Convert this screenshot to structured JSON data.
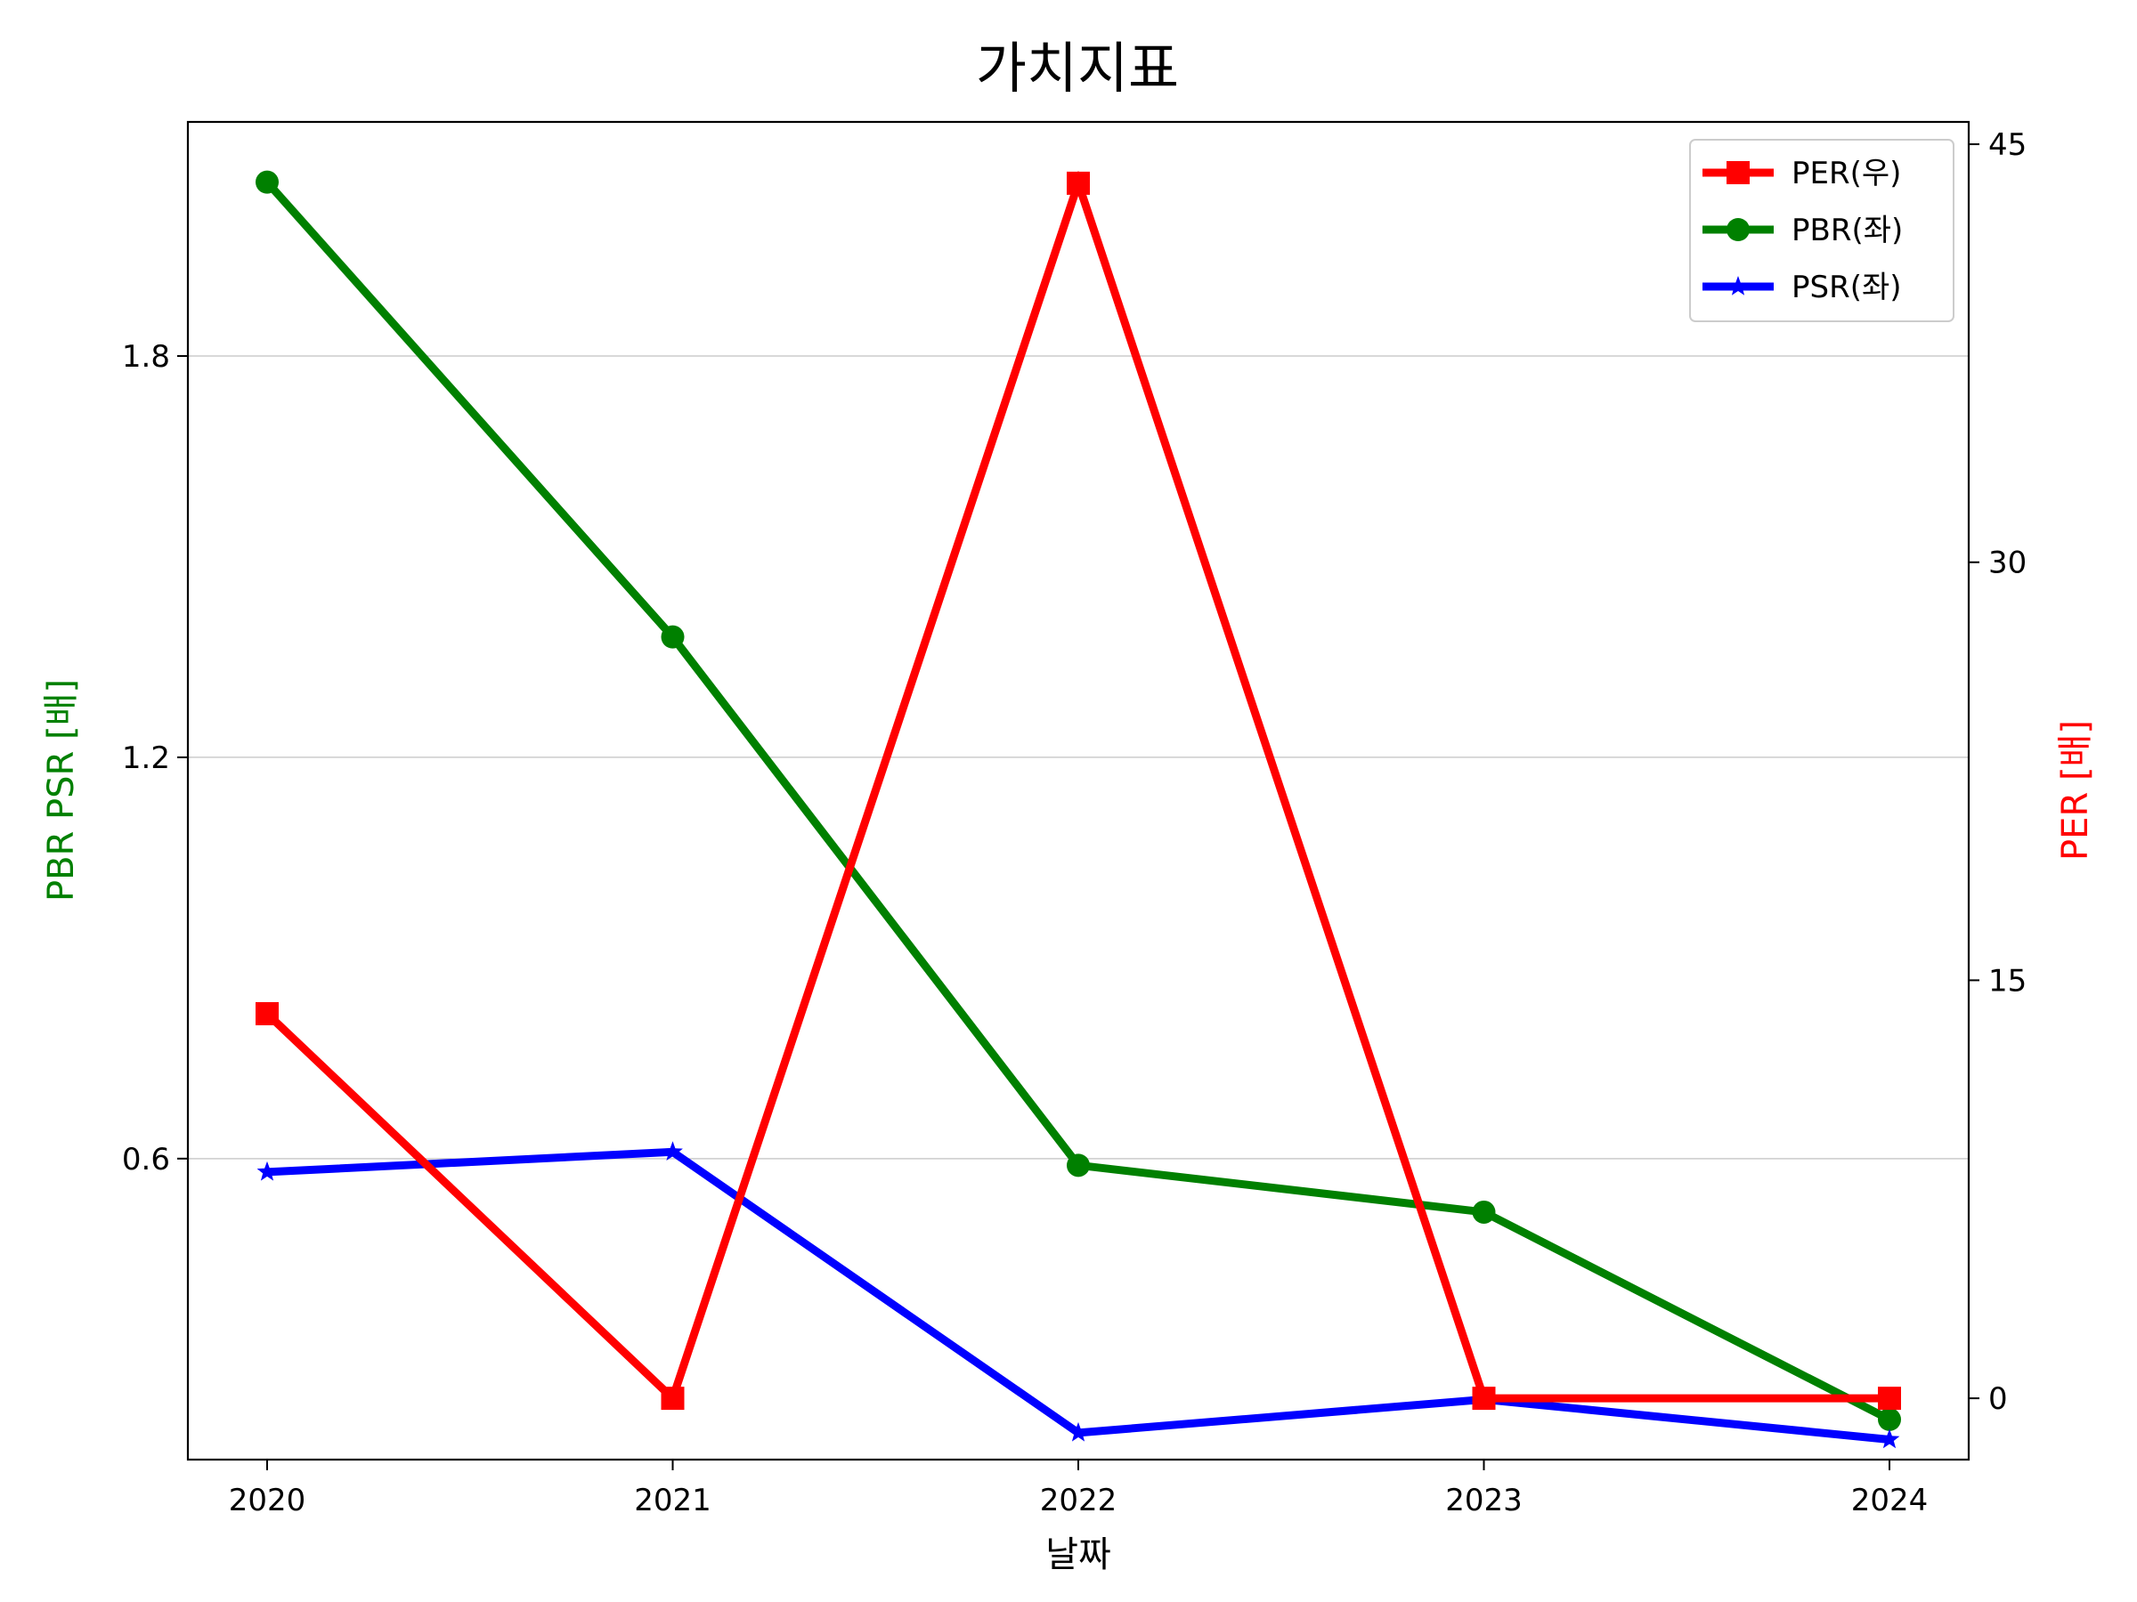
{
  "chart_data": {
    "type": "line",
    "title": "가치지표",
    "xlabel": "날짜",
    "ylabel_left": "PBR PSR [배]",
    "ylabel_right": "PER [배]",
    "ylabel_left_color": "#008000",
    "ylabel_right_color": "#ff0000",
    "categories": [
      "2020",
      "2021",
      "2022",
      "2023",
      "2024"
    ],
    "y_left": {
      "ticks": [
        0.6,
        1.2,
        1.8
      ],
      "tick_labels": [
        "0.6",
        "1.2",
        "1.8"
      ],
      "range": [
        0.15,
        2.15
      ]
    },
    "y_right": {
      "ticks": [
        0,
        15,
        30,
        45
      ],
      "tick_labels": [
        "0",
        "15",
        "30",
        "45"
      ],
      "range": [
        -2.2,
        45.8
      ]
    },
    "grid": "horizontal (left axis)",
    "legend_position": "top-right",
    "series": [
      {
        "name": "PER(우)",
        "axis": "right",
        "color": "#ff0000",
        "marker": "square",
        "values": [
          13.8,
          0,
          43.6,
          0,
          0
        ]
      },
      {
        "name": "PBR(좌)",
        "axis": "left",
        "color": "#008000",
        "marker": "circle",
        "values": [
          2.06,
          1.38,
          0.59,
          0.52,
          0.21
        ]
      },
      {
        "name": "PSR(좌)",
        "axis": "left",
        "color": "#0000ff",
        "marker": "star",
        "values": [
          0.58,
          0.61,
          0.19,
          0.24,
          0.18
        ]
      }
    ]
  }
}
